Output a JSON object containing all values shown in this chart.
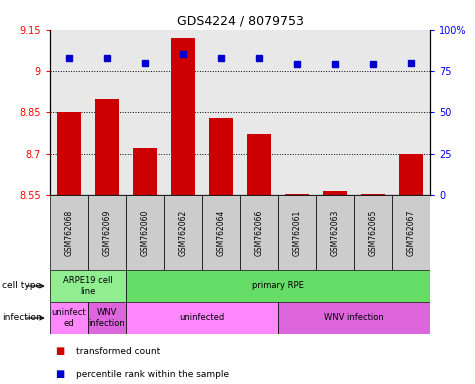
{
  "title": "GDS4224 / 8079753",
  "samples": [
    "GSM762068",
    "GSM762069",
    "GSM762060",
    "GSM762062",
    "GSM762064",
    "GSM762066",
    "GSM762061",
    "GSM762063",
    "GSM762065",
    "GSM762067"
  ],
  "transformed_counts": [
    8.85,
    8.9,
    8.72,
    9.12,
    8.83,
    8.77,
    8.555,
    8.565,
    8.555,
    8.7
  ],
  "percentile_ranks": [
    83,
    83,
    80,
    85,
    83,
    83,
    79,
    79,
    79,
    80
  ],
  "ylim": [
    8.55,
    9.15
  ],
  "yticks": [
    8.55,
    8.7,
    8.85,
    9.0,
    9.15
  ],
  "ytick_labels": [
    "8.55",
    "8.7",
    "8.85",
    "9",
    "9.15"
  ],
  "right_yticks": [
    0,
    25,
    50,
    75,
    100
  ],
  "right_ytick_labels": [
    "0",
    "25",
    "50",
    "75",
    "100%"
  ],
  "bar_color": "#cc0000",
  "dot_color": "#0000cc",
  "cell_types": [
    {
      "label": "ARPE19 cell\nline",
      "start": 0,
      "end": 2,
      "color": "#90ee90"
    },
    {
      "label": "primary RPE",
      "start": 2,
      "end": 10,
      "color": "#66dd66"
    }
  ],
  "infection_types": [
    {
      "label": "uninfect\ned",
      "start": 0,
      "end": 1,
      "color": "#ff88ff"
    },
    {
      "label": "WNV\ninfection",
      "start": 1,
      "end": 2,
      "color": "#dd66dd"
    },
    {
      "label": "uninfected",
      "start": 2,
      "end": 6,
      "color": "#ff88ff"
    },
    {
      "label": "WNV infection",
      "start": 6,
      "end": 10,
      "color": "#dd66dd"
    }
  ],
  "legend_labels": [
    "transformed count",
    "percentile rank within the sample"
  ],
  "legend_colors": [
    "#cc0000",
    "#0000cc"
  ],
  "grid_yticks": [
    9.0,
    8.85,
    8.7
  ],
  "bar_baseline": 8.55,
  "background_color": "#ffffff",
  "plot_bg_color": "#e8e8e8"
}
